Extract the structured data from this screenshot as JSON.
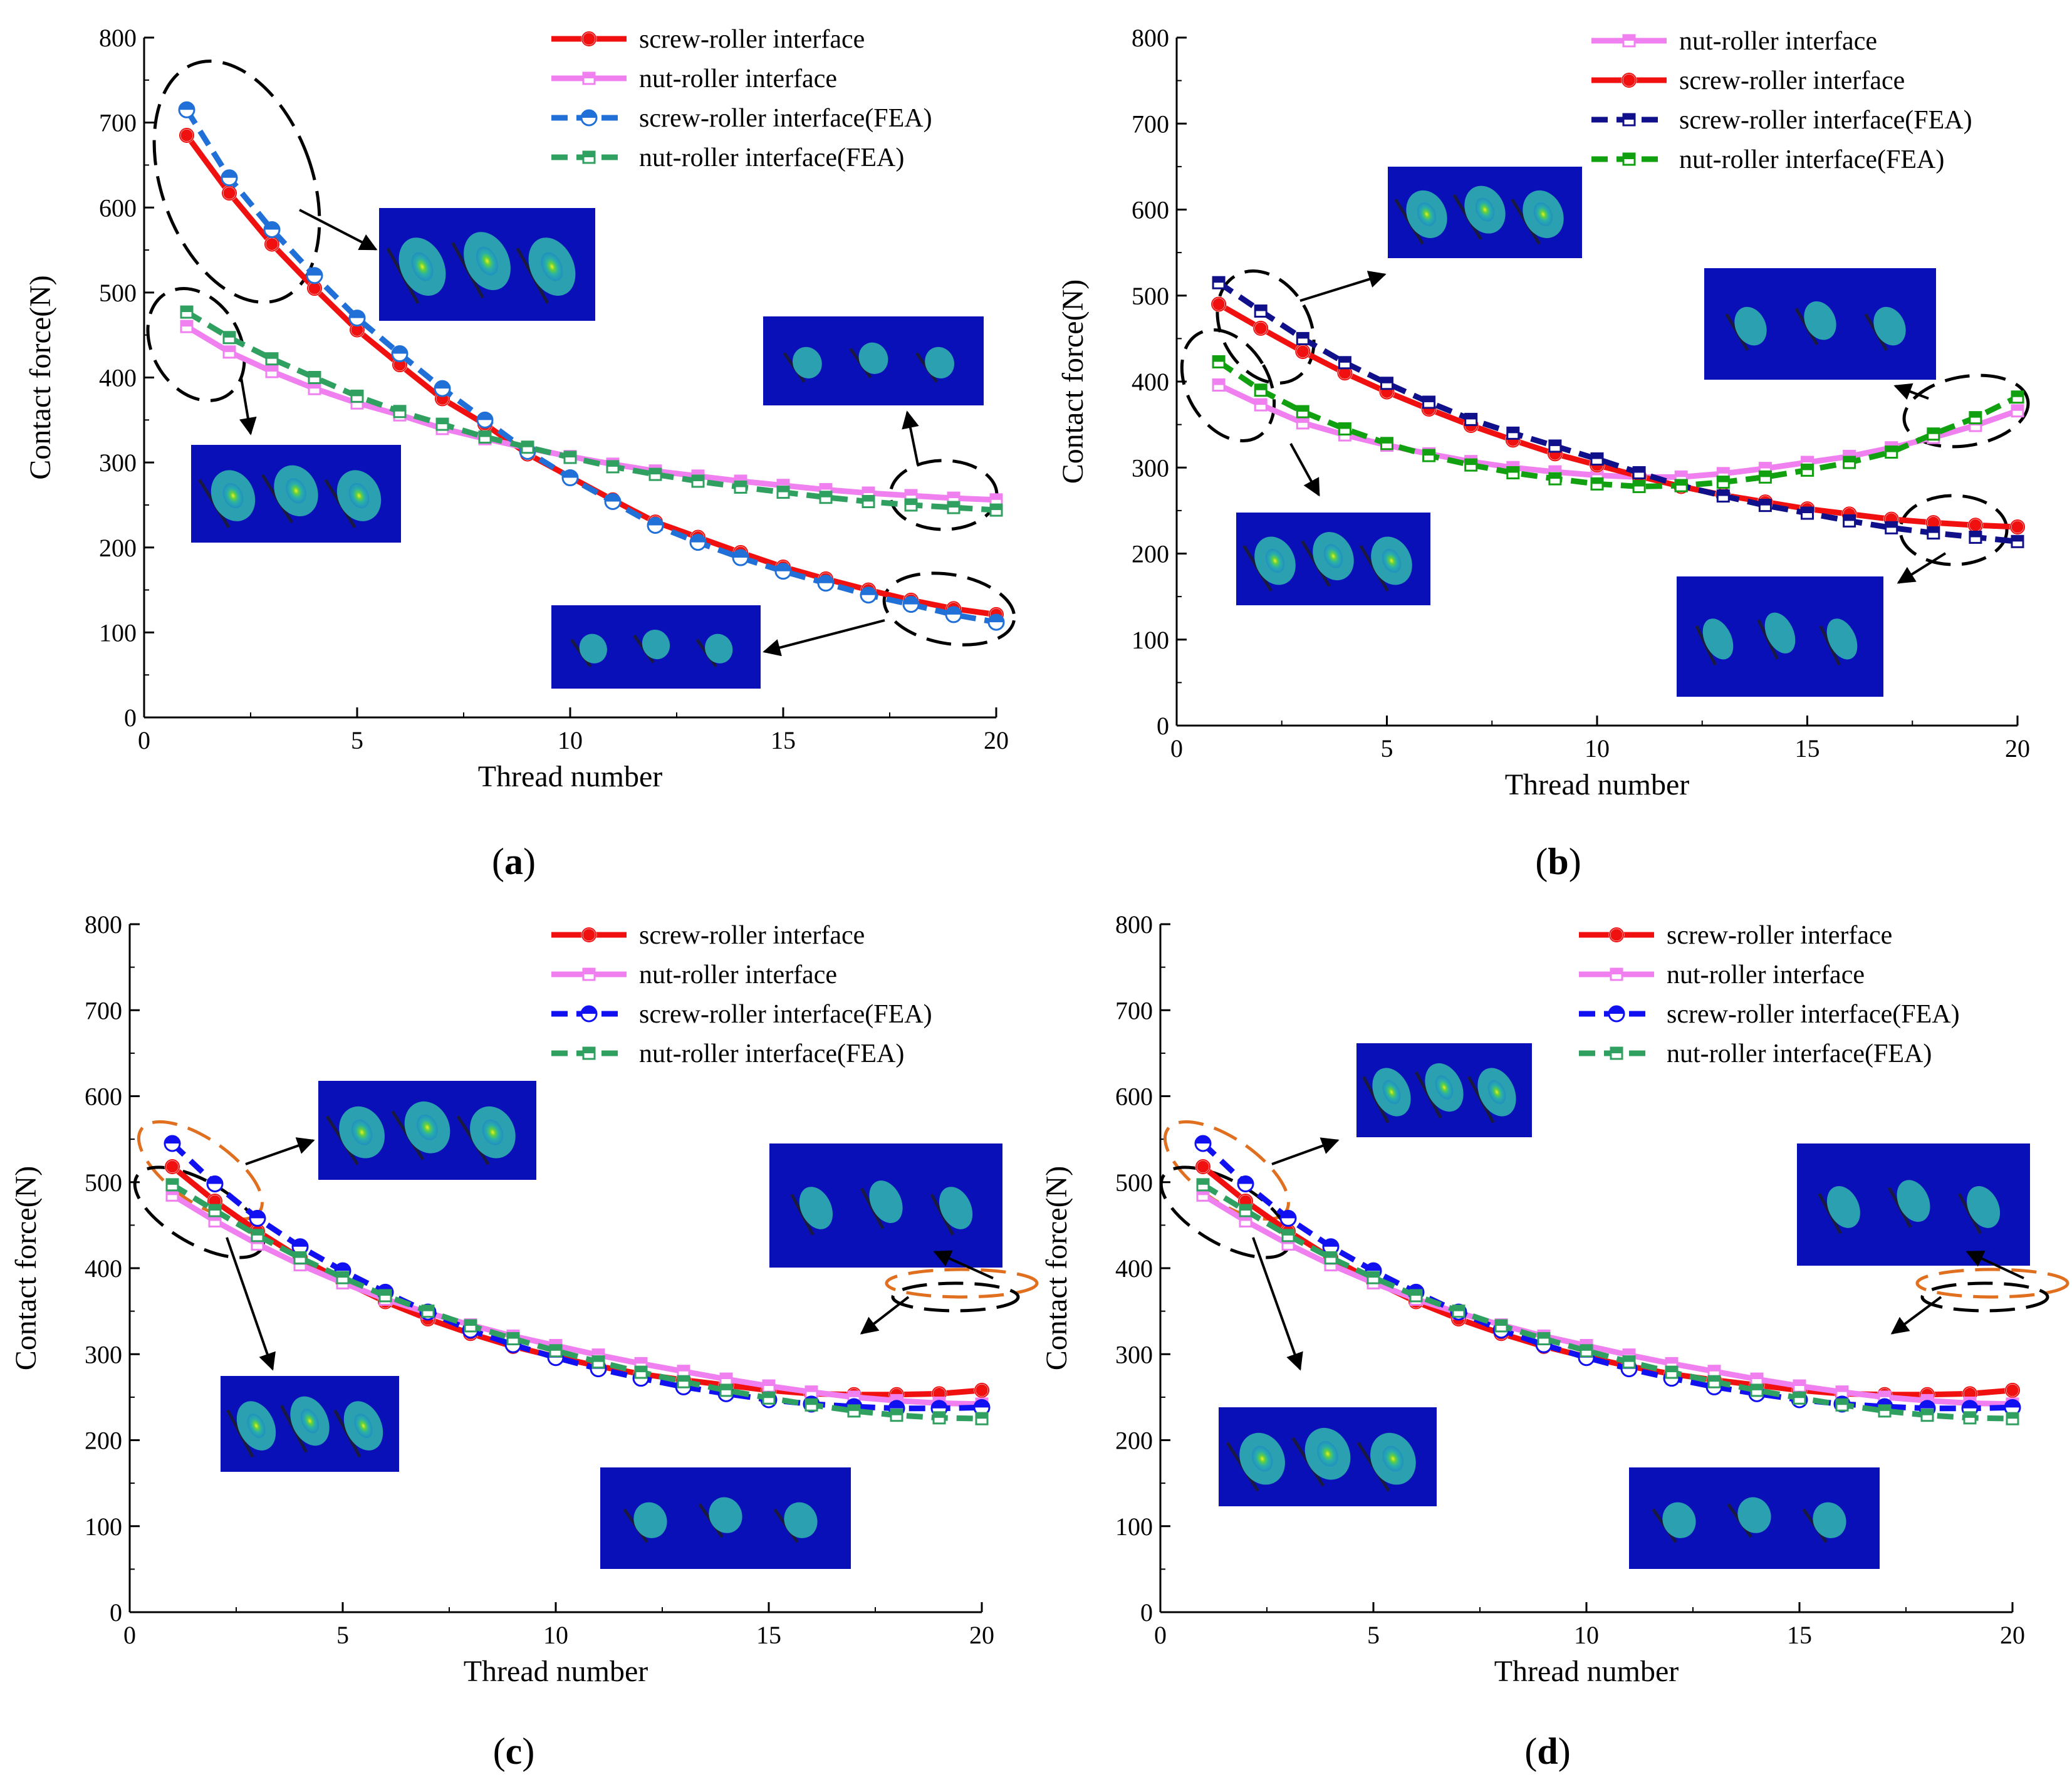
{
  "figure_captions": [
    "(a)",
    "(b)",
    "(c)",
    "(d)"
  ],
  "colors": {
    "screw": "#f01010",
    "nut": "#f080f0",
    "screw_fea_a": "#2070d8",
    "screw_fea_b": "#10108a",
    "screw_fea_cd": "#1010f0",
    "nut_fea": "#30a060",
    "nut_fea_b": "#10a010",
    "inset_bg": "#0a10b8",
    "inset_spot": "#2aa0b0"
  },
  "chart_data": [
    {
      "type": "line",
      "panel": "a",
      "caption": "(a)",
      "xlabel": "Thread number",
      "ylabel": "Contact force(N)",
      "xlim": [
        0,
        20
      ],
      "ylim": [
        0,
        800
      ],
      "xticks": [
        0,
        5,
        10,
        15,
        20
      ],
      "yticks": [
        0,
        100,
        200,
        300,
        400,
        500,
        600,
        700,
        800
      ],
      "x": [
        1,
        2,
        3,
        4,
        5,
        6,
        7,
        8,
        9,
        10,
        11,
        12,
        13,
        14,
        15,
        16,
        17,
        18,
        19,
        20
      ],
      "series": [
        {
          "name": "screw-roller interface",
          "color": "#f01010",
          "dash": false,
          "marker": "circle",
          "values": [
            685,
            617,
            557,
            505,
            456,
            415,
            375,
            345,
            310,
            283,
            256,
            230,
            212,
            194,
            177,
            163,
            150,
            138,
            128,
            121
          ]
        },
        {
          "name": "nut-roller interface",
          "color": "#f080f0",
          "dash": false,
          "marker": "square",
          "values": [
            460,
            430,
            407,
            387,
            370,
            356,
            340,
            328,
            317,
            307,
            298,
            290,
            284,
            278,
            273,
            268,
            264,
            261,
            258,
            256
          ]
        },
        {
          "name": "screw-roller interface(FEA)",
          "color": "#2070d8",
          "dash": true,
          "marker": "halfcircle",
          "values": [
            715,
            635,
            574,
            520,
            470,
            428,
            387,
            350,
            313,
            282,
            254,
            226,
            206,
            188,
            172,
            158,
            144,
            133,
            121,
            112
          ]
        },
        {
          "name": "nut-roller interface(FEA)",
          "color": "#30a060",
          "dash": true,
          "marker": "square",
          "values": [
            477,
            447,
            422,
            400,
            378,
            360,
            345,
            330,
            318,
            306,
            295,
            286,
            278,
            271,
            265,
            259,
            254,
            250,
            247,
            244
          ]
        }
      ]
    },
    {
      "type": "line",
      "panel": "b",
      "caption": "(b)",
      "xlabel": "Thread number",
      "ylabel": "Contact force(N)",
      "xlim": [
        0,
        20
      ],
      "ylim": [
        0,
        800
      ],
      "xticks": [
        0,
        5,
        10,
        15,
        20
      ],
      "yticks": [
        0,
        100,
        200,
        300,
        400,
        500,
        600,
        700,
        800
      ],
      "x": [
        1,
        2,
        3,
        4,
        5,
        6,
        7,
        8,
        9,
        10,
        11,
        12,
        13,
        14,
        15,
        16,
        17,
        18,
        19,
        20
      ],
      "series": [
        {
          "name": "nut-roller interface",
          "color": "#f080f0",
          "dash": false,
          "marker": "square",
          "values": [
            396,
            373,
            352,
            338,
            326,
            316,
            307,
            300,
            295,
            291,
            289,
            289,
            293,
            299,
            306,
            313,
            323,
            335,
            349,
            366
          ]
        },
        {
          "name": "screw-roller interface",
          "color": "#f01010",
          "dash": false,
          "marker": "circle",
          "values": [
            490,
            462,
            435,
            410,
            388,
            368,
            349,
            332,
            316,
            303,
            290,
            278,
            268,
            260,
            252,
            246,
            240,
            236,
            233,
            231
          ]
        },
        {
          "name": "screw-roller interface(FEA)",
          "color": "#10108a",
          "dash": true,
          "marker": "square",
          "values": [
            515,
            482,
            450,
            422,
            398,
            376,
            356,
            340,
            325,
            310,
            294,
            279,
            267,
            256,
            247,
            238,
            230,
            224,
            219,
            214
          ]
        },
        {
          "name": "nut-roller interface(FEA)",
          "color": "#10a010",
          "dash": true,
          "marker": "square",
          "values": [
            423,
            390,
            365,
            345,
            328,
            314,
            303,
            294,
            287,
            281,
            278,
            279,
            283,
            289,
            297,
            306,
            318,
            339,
            358,
            382
          ]
        }
      ]
    },
    {
      "type": "line",
      "panel": "c",
      "caption": "(c)",
      "xlabel": "Thread number",
      "ylabel": "Contact force(N)",
      "xlim": [
        0,
        20
      ],
      "ylim": [
        0,
        800
      ],
      "xticks": [
        0,
        5,
        10,
        15,
        20
      ],
      "yticks": [
        0,
        100,
        200,
        300,
        400,
        500,
        600,
        700,
        800
      ],
      "x": [
        1,
        2,
        3,
        4,
        5,
        6,
        7,
        8,
        9,
        10,
        11,
        12,
        13,
        14,
        15,
        16,
        17,
        18,
        19,
        20
      ],
      "series": [
        {
          "name": "screw-roller interface",
          "color": "#f01010",
          "dash": false,
          "marker": "circle",
          "values": [
            518,
            478,
            443,
            412,
            385,
            361,
            341,
            324,
            309,
            297,
            286,
            277,
            270,
            264,
            258,
            254,
            253,
            253,
            254,
            258
          ]
        },
        {
          "name": "nut-roller interface",
          "color": "#f080f0",
          "dash": false,
          "marker": "square",
          "values": [
            485,
            455,
            428,
            404,
            383,
            364,
            348,
            334,
            321,
            310,
            299,
            289,
            280,
            271,
            263,
            256,
            250,
            246,
            243,
            242
          ]
        },
        {
          "name": "screw-roller interface(FEA)",
          "color": "#1010f0",
          "dash": true,
          "marker": "halfcircle",
          "values": [
            545,
            498,
            458,
            425,
            397,
            372,
            349,
            328,
            311,
            296,
            283,
            272,
            262,
            254,
            247,
            242,
            239,
            237,
            237,
            238
          ]
        },
        {
          "name": "nut-roller interface(FEA)",
          "color": "#30a060",
          "dash": true,
          "marker": "square",
          "values": [
            497,
            467,
            438,
            412,
            389,
            368,
            350,
            333,
            318,
            304,
            291,
            279,
            268,
            258,
            249,
            241,
            234,
            229,
            226,
            225
          ]
        }
      ]
    },
    {
      "type": "line",
      "panel": "d",
      "caption": "(d)",
      "xlabel": "Thread number",
      "ylabel": "Contact force(N)",
      "xlim": [
        0,
        20
      ],
      "ylim": [
        0,
        800
      ],
      "xticks": [
        0,
        5,
        10,
        15,
        20
      ],
      "yticks": [
        0,
        100,
        200,
        300,
        400,
        500,
        600,
        700,
        800
      ],
      "x": [
        1,
        2,
        3,
        4,
        5,
        6,
        7,
        8,
        9,
        10,
        11,
        12,
        13,
        14,
        15,
        16,
        17,
        18,
        19,
        20
      ],
      "series": [
        {
          "name": "screw-roller interface",
          "color": "#f01010",
          "dash": false,
          "marker": "circle",
          "values": [
            518,
            478,
            443,
            412,
            385,
            361,
            341,
            324,
            309,
            297,
            286,
            277,
            270,
            264,
            258,
            254,
            253,
            253,
            254,
            258
          ]
        },
        {
          "name": "nut-roller interface",
          "color": "#f080f0",
          "dash": false,
          "marker": "square",
          "values": [
            485,
            455,
            428,
            404,
            383,
            364,
            348,
            334,
            321,
            310,
            299,
            289,
            280,
            271,
            263,
            256,
            250,
            246,
            243,
            242
          ]
        },
        {
          "name": "screw-roller interface(FEA)",
          "color": "#1010f0",
          "dash": true,
          "marker": "halfcircle",
          "values": [
            545,
            498,
            458,
            425,
            397,
            372,
            349,
            328,
            311,
            296,
            283,
            272,
            262,
            254,
            247,
            242,
            239,
            237,
            237,
            238
          ]
        },
        {
          "name": "nut-roller interface(FEA)",
          "color": "#30a060",
          "dash": true,
          "marker": "square",
          "values": [
            497,
            467,
            438,
            412,
            389,
            368,
            350,
            333,
            318,
            304,
            291,
            279,
            268,
            258,
            249,
            241,
            234,
            229,
            226,
            225
          ]
        }
      ]
    }
  ]
}
